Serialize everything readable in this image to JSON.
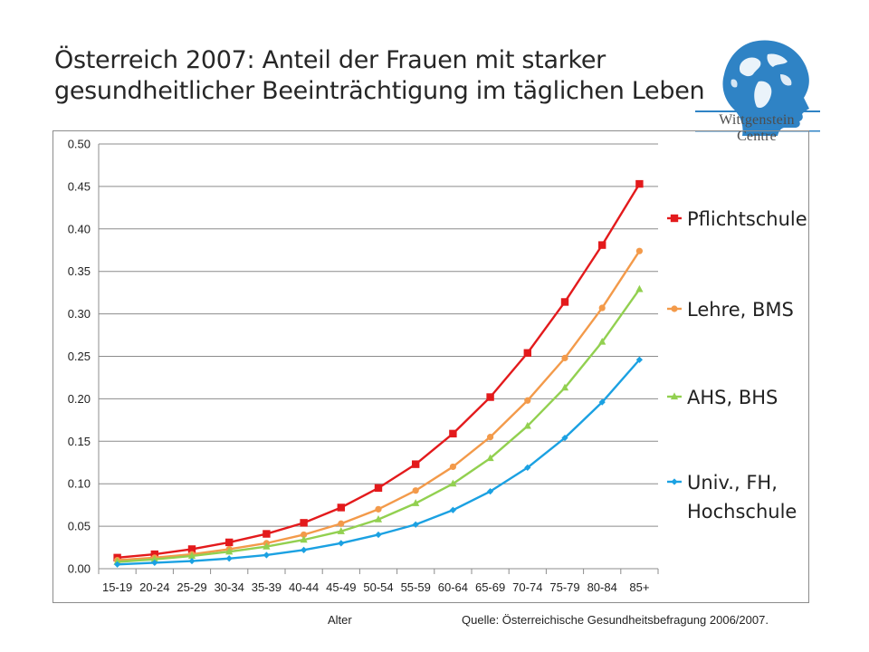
{
  "slide": {
    "title_line1": "Österreich 2007: Anteil der Frauen mit starker",
    "title_line2": "gesundheitlicher Beeinträchtigung im täglichen Leben"
  },
  "logo": {
    "text": "Wittgenstein Centre",
    "icon": "globe-head-logo",
    "color": "#2f83c5"
  },
  "footer": {
    "x_caption": "Alter",
    "source": "Quelle: Österreichische Gesundheitsbefragung 2006/2007."
  },
  "chart_data": {
    "type": "line",
    "title": "",
    "xlabel": "Alter",
    "ylabel": "",
    "categories": [
      "15-19",
      "20-24",
      "25-29",
      "30-34",
      "35-39",
      "40-44",
      "45-49",
      "50-54",
      "55-59",
      "60-64",
      "65-69",
      "70-74",
      "75-79",
      "80-84",
      "85+"
    ],
    "yticks": [
      "0.00",
      "0.05",
      "0.10",
      "0.15",
      "0.20",
      "0.25",
      "0.30",
      "0.35",
      "0.40",
      "0.45",
      "0.50"
    ],
    "ylim": [
      0,
      0.5
    ],
    "grid": "horizontal",
    "legend_position": "right",
    "series": [
      {
        "name": "Pflichtschule",
        "color": "#e31a1c",
        "marker": "square",
        "values": [
          0.013,
          0.017,
          0.023,
          0.031,
          0.041,
          0.054,
          0.072,
          0.095,
          0.123,
          0.159,
          0.202,
          0.254,
          0.314,
          0.381,
          0.453
        ]
      },
      {
        "name": "Lehre, BMS",
        "color": "#f39a4a",
        "marker": "circle",
        "values": [
          0.01,
          0.013,
          0.017,
          0.023,
          0.03,
          0.04,
          0.053,
          0.07,
          0.092,
          0.12,
          0.155,
          0.198,
          0.248,
          0.307,
          0.374
        ]
      },
      {
        "name": "AHS, BHS",
        "color": "#92d050",
        "marker": "triangle",
        "values": [
          0.008,
          0.011,
          0.015,
          0.02,
          0.026,
          0.034,
          0.044,
          0.058,
          0.077,
          0.1,
          0.13,
          0.168,
          0.213,
          0.267,
          0.329
        ]
      },
      {
        "name": "Univ., FH, Hochschule",
        "name_lines": [
          "Univ., FH,",
          "Hochschule"
        ],
        "color": "#1ba1e2",
        "marker": "diamond",
        "values": [
          0.005,
          0.007,
          0.009,
          0.012,
          0.016,
          0.022,
          0.03,
          0.04,
          0.052,
          0.069,
          0.091,
          0.119,
          0.154,
          0.196,
          0.246
        ]
      }
    ]
  }
}
